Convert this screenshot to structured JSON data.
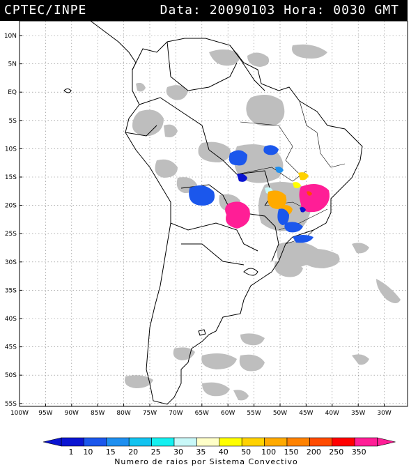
{
  "header": {
    "source": "CPTEC/INPE",
    "data_label": "Data:",
    "date": "20090103",
    "hora_label": "Hora:",
    "time": "0030",
    "tz": "GMT"
  },
  "lat_labels": [
    "10N",
    "5N",
    "EQ",
    "5S",
    "10S",
    "15S",
    "20S",
    "25S",
    "30S",
    "35S",
    "40S",
    "45S",
    "50S",
    "55S"
  ],
  "lon_labels": [
    "100W",
    "95W",
    "90W",
    "85W",
    "80W",
    "75W",
    "70W",
    "65W",
    "60W",
    "55W",
    "50W",
    "45W",
    "40W",
    "35W",
    "30W"
  ],
  "colorbar": {
    "labels": [
      "1",
      "10",
      "15",
      "20",
      "25",
      "30",
      "35",
      "40",
      "50",
      "100",
      "150",
      "200",
      "250",
      "350"
    ],
    "colors": [
      "#0a14d2",
      "#1b57ec",
      "#1e8ff0",
      "#12c3f0",
      "#14f0f0",
      "#c8f8f8",
      "#ffffc8",
      "#ffff00",
      "#ffd200",
      "#ffaa00",
      "#ff8200",
      "#ff4b00",
      "#ff0000",
      "#ff1e96"
    ],
    "caption": "Numero de raios por Sistema Convectivo"
  },
  "map": {
    "land_color": "#ffffff",
    "cloud_color": "#bebebe",
    "border_color": "#000000"
  }
}
